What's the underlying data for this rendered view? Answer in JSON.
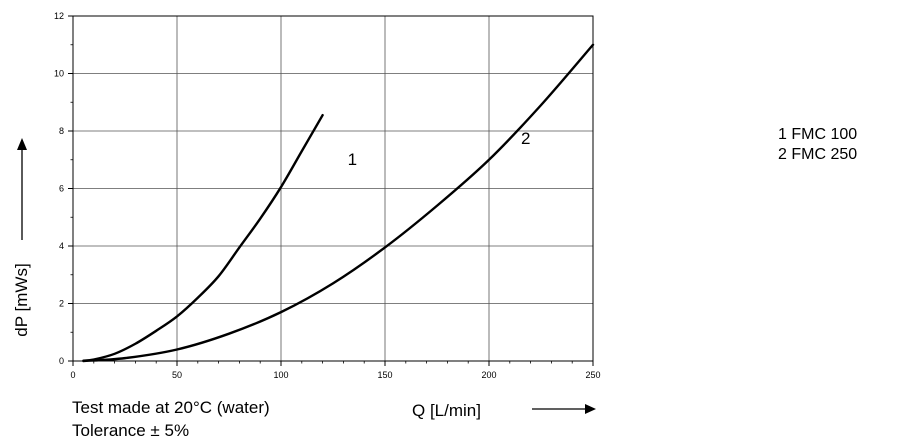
{
  "chart_data": {
    "type": "line",
    "xlabel": "Q [L/min]",
    "ylabel": "dP [mWs]",
    "xlim": [
      0,
      250
    ],
    "ylim": [
      0,
      12
    ],
    "x_ticks": [
      0,
      50,
      100,
      150,
      200,
      250
    ],
    "y_ticks": [
      0,
      2,
      4,
      6,
      8,
      10,
      12
    ],
    "grid": true,
    "series": [
      {
        "name": "1",
        "x": [
          5,
          10,
          20,
          30,
          40,
          50,
          60,
          70,
          80,
          90,
          100,
          110,
          120
        ],
        "y": [
          0.01,
          0.05,
          0.25,
          0.6,
          1.05,
          1.55,
          2.2,
          2.95,
          3.95,
          4.95,
          6.05,
          7.3,
          8.55
        ]
      },
      {
        "name": "2",
        "x": [
          5,
          25,
          50,
          75,
          100,
          125,
          150,
          175,
          200,
          225,
          250
        ],
        "y": [
          0.0,
          0.1,
          0.4,
          0.95,
          1.7,
          2.7,
          3.95,
          5.4,
          7.0,
          8.9,
          11.0
        ]
      }
    ],
    "legend": [
      "1 FMC 100",
      "2 FMC 250"
    ],
    "legend_position": "right",
    "annotations": [
      "Test made at 20°C (water)",
      "Tolerance ± 5%"
    ]
  }
}
